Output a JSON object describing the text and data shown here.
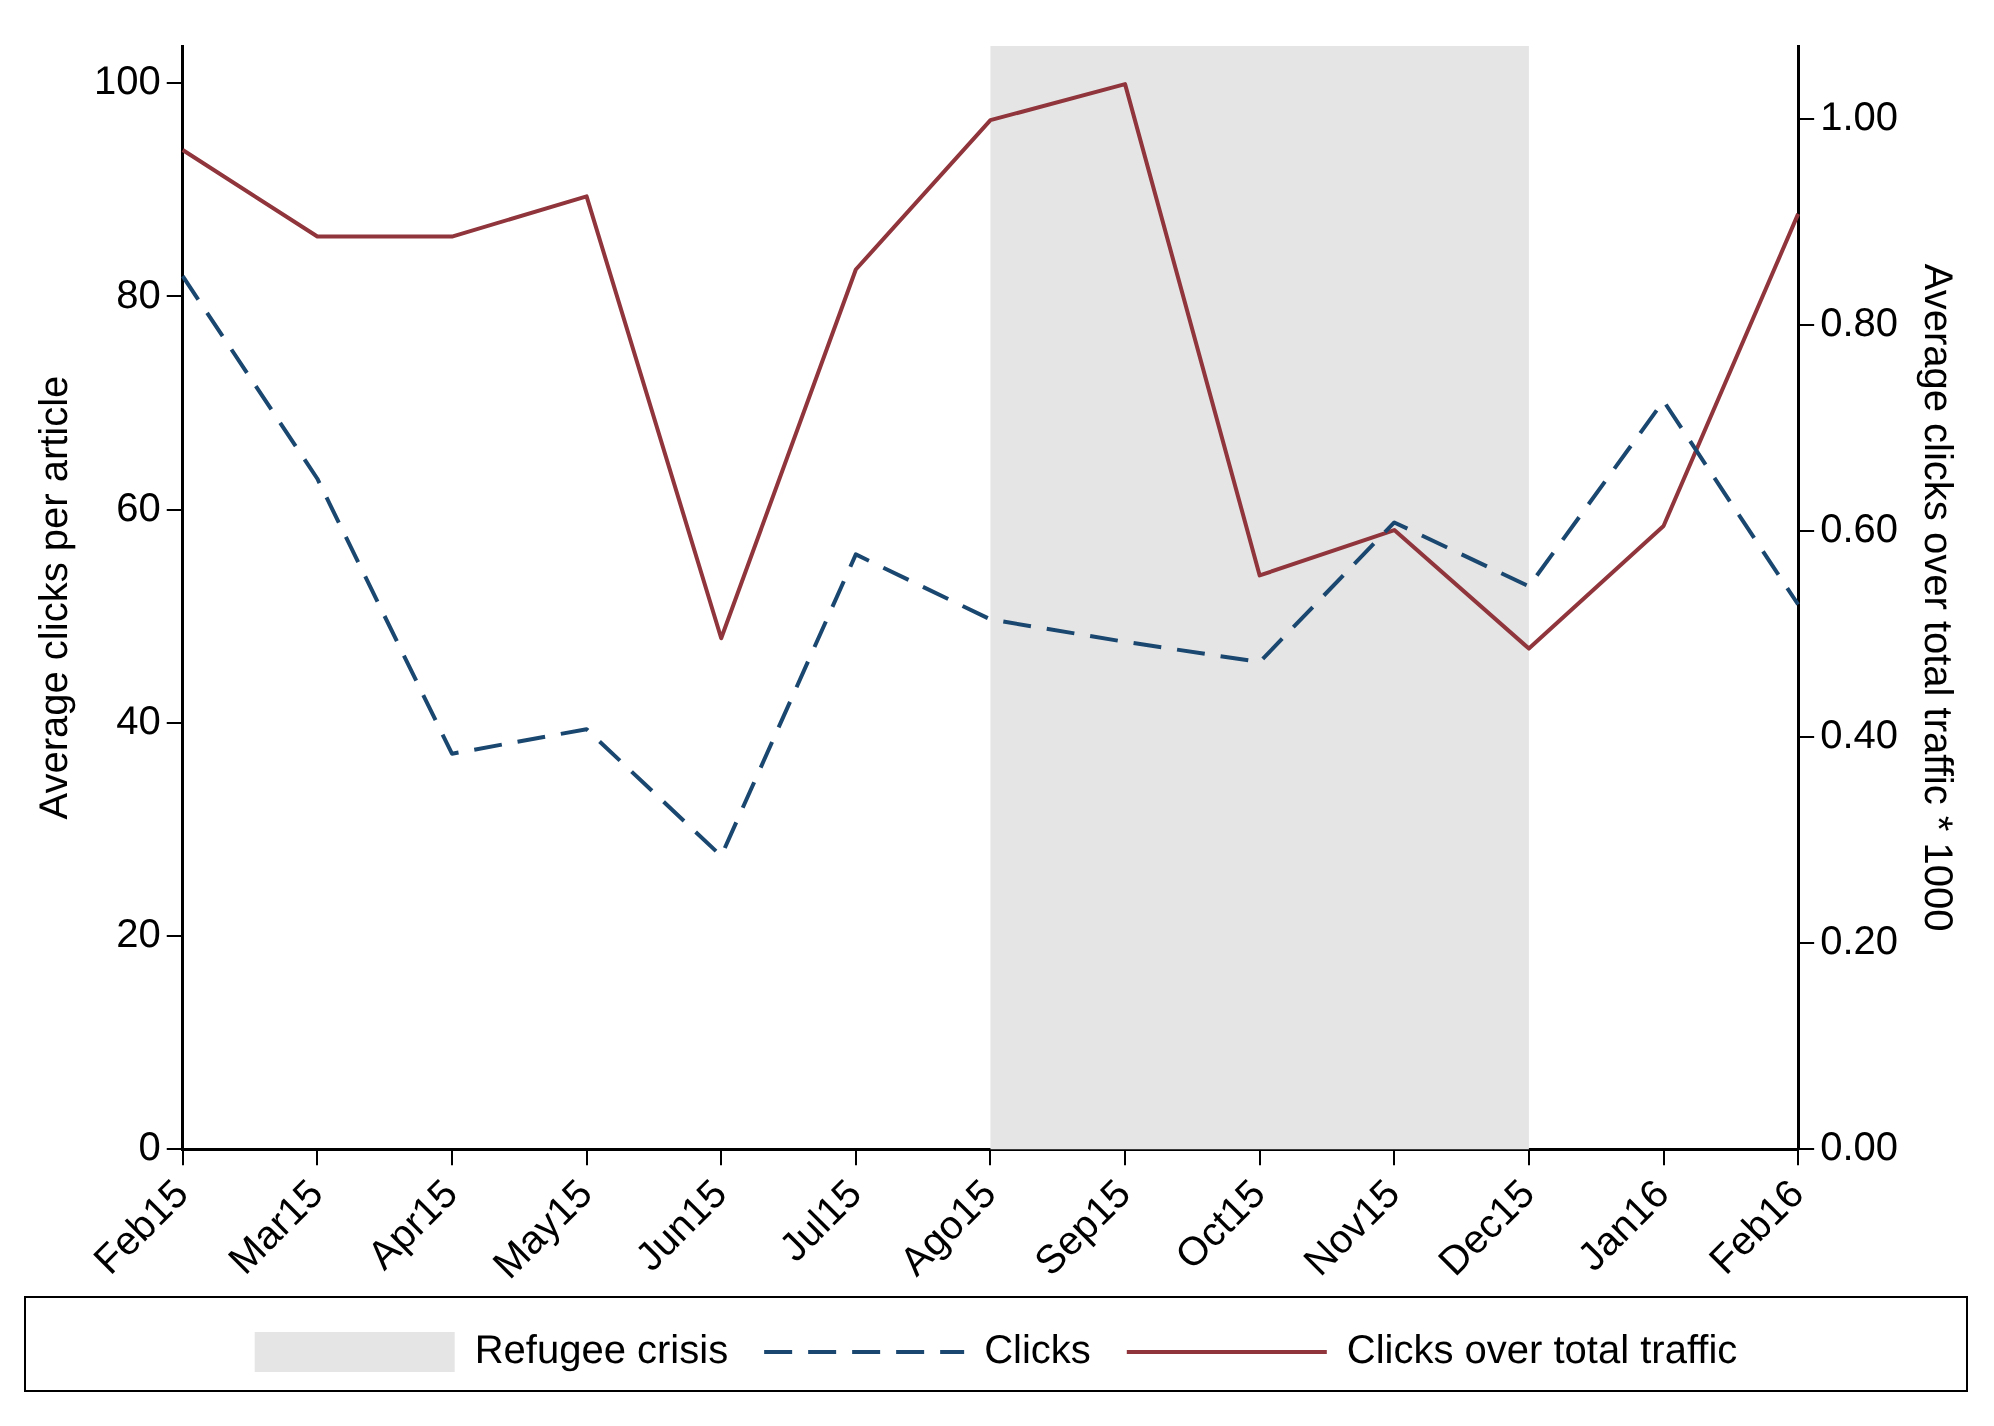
{
  "chart_data": {
    "type": "line",
    "xlabel": null,
    "ylabel": "Average clicks per article",
    "y2label": "Average clicks over total traffic * 1000",
    "categories": [
      "Feb15",
      "Mar15",
      "Apr15",
      "May15",
      "Jun15",
      "Jul15",
      "Ago15",
      "Sep15",
      "Oct15",
      "Nov15",
      "Dec15",
      "Jan16",
      "Feb16"
    ],
    "series": [
      {
        "name": "Clicks",
        "color": "#1a476f",
        "line_style": "dashed",
        "values": [
          81.9,
          62.9,
          37.1,
          39.4,
          27.5,
          55.8,
          49.7,
          47.6,
          45.7,
          58.8,
          52.8,
          70.2,
          51.1
        ]
      },
      {
        "name": "Clicks over total traffic",
        "color": "#90353b",
        "line_style": "solid",
        "axis": "y2",
        "values": [
          0.97,
          0.886,
          0.886,
          0.925,
          0.496,
          0.854,
          0.999,
          1.034,
          0.557,
          0.601,
          0.486,
          0.605,
          0.908
        ]
      }
    ],
    "ylim": [
      0,
      103.5
    ],
    "yticks": [
      0,
      20,
      40,
      60,
      80,
      100
    ],
    "y2lim": [
      0,
      1.071
    ],
    "y2ticks": [
      {
        "value": 0,
        "label": "0.00"
      },
      {
        "value": 0.2,
        "label": "0.20"
      },
      {
        "value": 0.4,
        "label": "0.40"
      },
      {
        "value": 0.6,
        "label": "0.60"
      },
      {
        "value": 0.8,
        "label": "0.80"
      },
      {
        "value": 1,
        "label": "1.00"
      }
    ],
    "bands": [
      {
        "axis": "x",
        "from": "Ago15",
        "to": "Dec15",
        "label": "Refugee crisis",
        "color": "#e5e5e5"
      }
    ],
    "grid": false,
    "legend": "bottom",
    "marker": "none"
  }
}
